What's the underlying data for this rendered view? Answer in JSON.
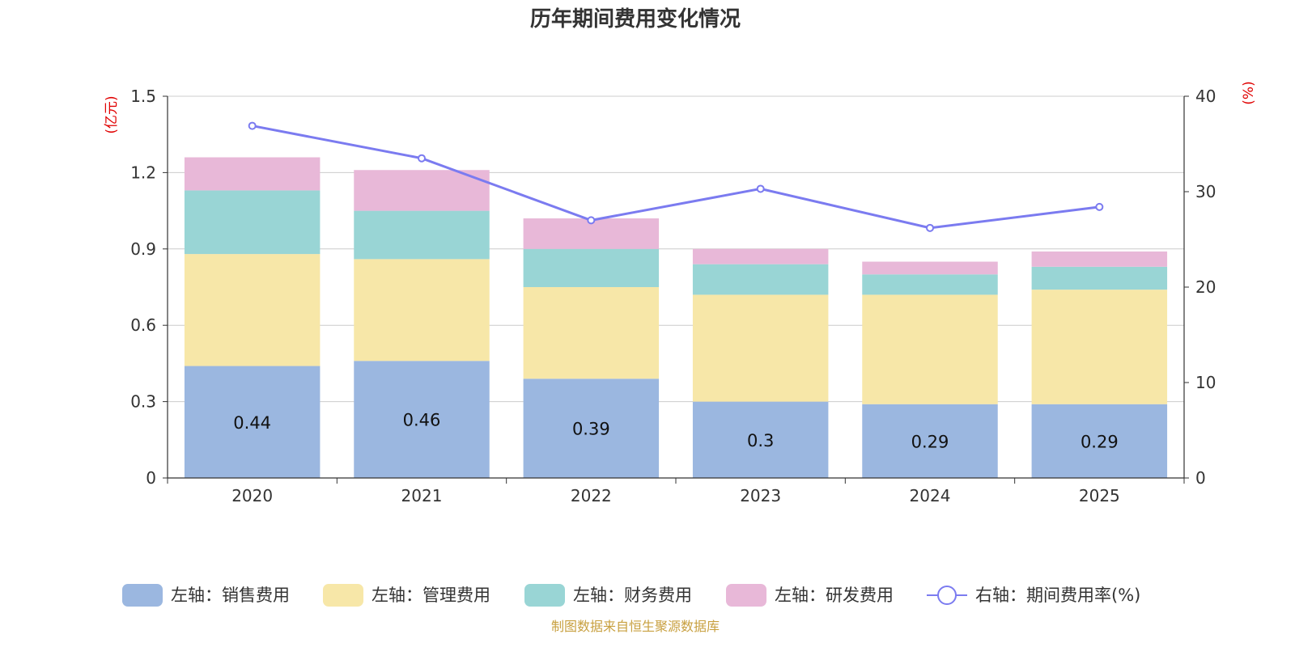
{
  "chart_data": {
    "type": "bar",
    "title": "历年期间费用变化情况",
    "categories": [
      "2020",
      "2021",
      "2022",
      "2023",
      "2024",
      "2025"
    ],
    "left_axis": {
      "unit": "(亿元)",
      "ylim": [
        0,
        1.5
      ],
      "ticks": [
        "0",
        "0.3",
        "0.6",
        "0.9",
        "1.2",
        "1.5"
      ]
    },
    "right_axis": {
      "unit": "(%)",
      "ylim": [
        0,
        40
      ],
      "ticks": [
        "0",
        "10",
        "20",
        "30",
        "40"
      ]
    },
    "series": [
      {
        "name": "左轴：销售费用",
        "axis": "left",
        "stack": "cost",
        "color": "#9bb7e0",
        "values": [
          0.44,
          0.46,
          0.39,
          0.3,
          0.29,
          0.29
        ],
        "show_labels": true
      },
      {
        "name": "左轴：管理费用",
        "axis": "left",
        "stack": "cost",
        "color": "#f7e7a8",
        "values": [
          0.44,
          0.4,
          0.36,
          0.42,
          0.43,
          0.45
        ]
      },
      {
        "name": "左轴：财务费用",
        "axis": "left",
        "stack": "cost",
        "color": "#99d5d5",
        "values": [
          0.25,
          0.19,
          0.15,
          0.12,
          0.08,
          0.09
        ]
      },
      {
        "name": "左轴：研发费用",
        "axis": "left",
        "stack": "cost",
        "color": "#e8b8d8",
        "values": [
          0.13,
          0.16,
          0.12,
          0.06,
          0.05,
          0.06
        ]
      },
      {
        "name": "右轴：期间费用率(%)",
        "axis": "right",
        "type": "line",
        "color": "#7b7bf0",
        "values": [
          36.9,
          33.5,
          27.0,
          30.3,
          26.2,
          28.4
        ]
      }
    ],
    "grid": true,
    "legend_position": "bottom"
  },
  "source_note": "制图数据来自恒生聚源数据库"
}
